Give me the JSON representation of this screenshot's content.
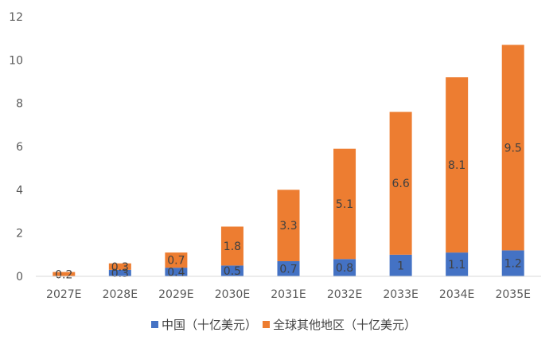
{
  "chart_data": {
    "type": "bar",
    "stacked": true,
    "categories": [
      "2027E",
      "2028E",
      "2029E",
      "2030E",
      "2031E",
      "2032E",
      "2033E",
      "2034E",
      "2035E"
    ],
    "series": [
      {
        "name": "中国（十亿美元）",
        "color": "#4472C4",
        "values": [
          0.0,
          0.3,
          0.4,
          0.5,
          0.7,
          0.8,
          1,
          1.1,
          1.2
        ],
        "labels": [
          "",
          "0.3",
          "0.4",
          "0.5",
          "0.7",
          "0.8",
          "1",
          "1.1",
          "1.2"
        ]
      },
      {
        "name": "全球其他地区（十亿美元）",
        "color": "#ED7D31",
        "values": [
          0.2,
          0.3,
          0.7,
          1.8,
          3.3,
          5.1,
          6.6,
          8.1,
          9.5
        ],
        "labels": [
          "0.2",
          "0.3",
          "0.7",
          "1.8",
          "3.3",
          "5.1",
          "6.6",
          "8.1",
          "9.5"
        ]
      }
    ],
    "yticks": [
      "0",
      "2",
      "4",
      "6",
      "8",
      "10",
      "12"
    ],
    "ylim": [
      0,
      12
    ],
    "grid": false,
    "legend_position": "bottom",
    "title": "",
    "xlabel": "",
    "ylabel": ""
  }
}
